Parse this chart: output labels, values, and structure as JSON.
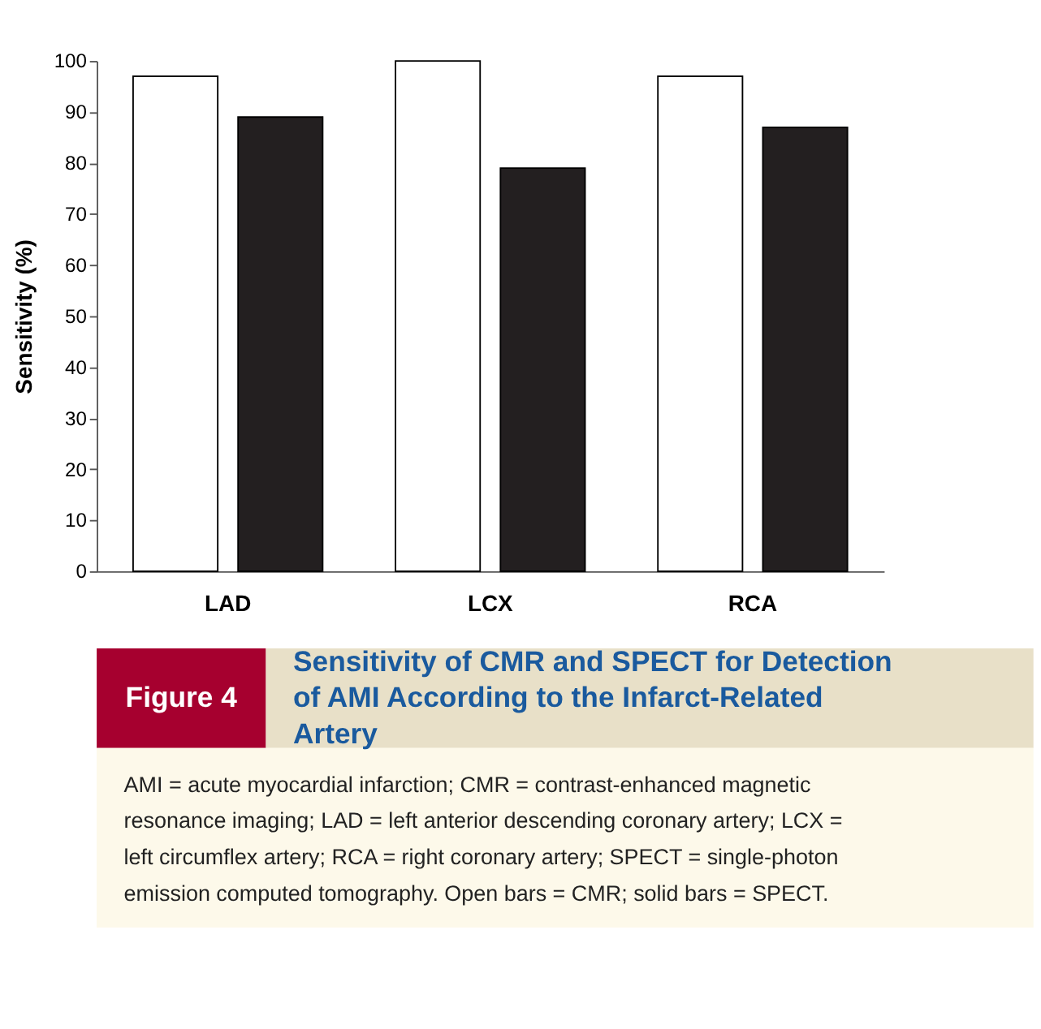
{
  "chart_data": {
    "type": "bar",
    "title": "Sensitivity of CMR and SPECT for Detection of AMI According to the Infarct-Related Artery",
    "ylabel": "Sensitivity (%)",
    "categories": [
      "LAD",
      "LCX",
      "RCA"
    ],
    "series": [
      {
        "color": "#ffffff",
        "values": [
          97,
          100,
          97
        ]
      },
      {
        "color": "#231f20",
        "values": [
          89,
          79,
          87
        ]
      }
    ],
    "ylim": [
      0,
      100
    ],
    "yticks": [
      0,
      10,
      20,
      30,
      40,
      50,
      60,
      70,
      80,
      90,
      100
    ],
    "grid": false,
    "legend": false,
    "annotations": [
      "Figure 4",
      "AMI = acute myocardial infarction; CMR = contrast-enhanced magnetic resonance imaging; LAD = left anterior descending coronary artery; LCX = left circumflex artery; RCA = right coronary artery; SPECT = single-photon emission computed tomography. Open bars = CMR; solid bars = SPECT."
    ]
  }
}
